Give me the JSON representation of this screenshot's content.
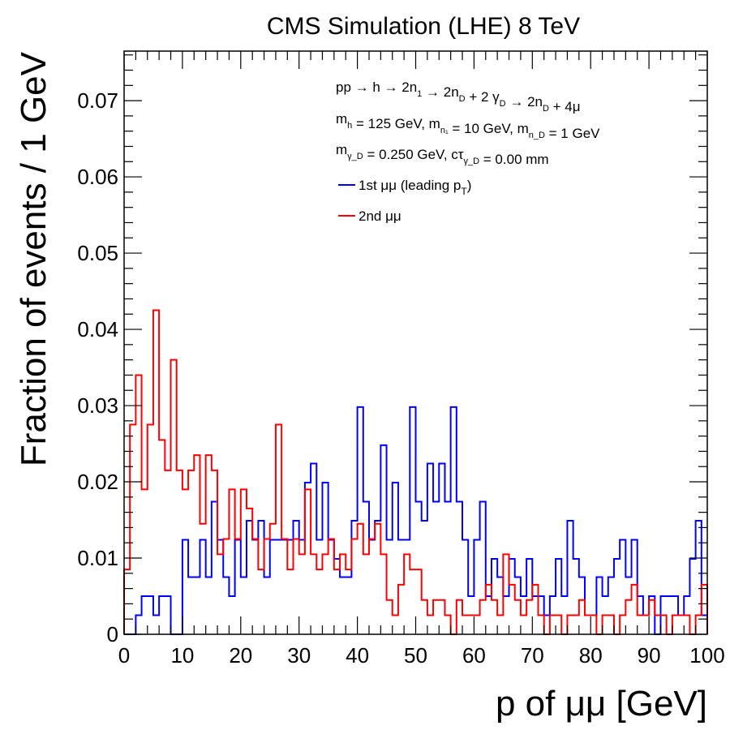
{
  "chart_data": {
    "type": "histogram",
    "title": "CMS Simulation (LHE) 8 TeV",
    "xlabel": "p of μμ [GeV]",
    "ylabel": "Fraction of events / 1 GeV",
    "xlim": [
      0,
      100
    ],
    "ylim": [
      0,
      0.0765
    ],
    "bin_width": 1,
    "x_ticks": [
      "0",
      "10",
      "20",
      "30",
      "40",
      "50",
      "60",
      "70",
      "80",
      "90",
      "100"
    ],
    "y_ticks": [
      "0",
      "0.01",
      "0.02",
      "0.03",
      "0.04",
      "0.05",
      "0.06",
      "0.07"
    ],
    "legend": {
      "placement": "top-right",
      "lines": [
        {
          "pre": "pp → h → 2n",
          "sub": "1",
          "post": " → 2n",
          "sub2": "D",
          "post2": " + 2 γ",
          "sub3": "D",
          "post3": " → 2n",
          "sub4": "D",
          "post4": " + 4μ"
        },
        {
          "pre": "m",
          "sub": "h",
          "post": " = 125 GeV, m",
          "sub2": "n₁",
          "post2": " = 10 GeV, m",
          "sub3": "n_D",
          "post3": " = 1 GeV"
        },
        {
          "pre": "m",
          "sub": "γ_D",
          "post": " = 0.250 GeV, cτ",
          "sub2": "γ_D",
          "post2": " = 0.00 mm"
        }
      ]
    },
    "series": [
      {
        "name": "1st μμ (leading p_T)",
        "name_main": "1st μμ (leading p",
        "name_sub": "T",
        "name_end": ")",
        "color": "#0000ff",
        "values": [
          0,
          0,
          0.0025,
          0.005,
          0.005,
          0.0025,
          0.005,
          0.005,
          0,
          0,
          0.0124,
          0.0075,
          0.0075,
          0.0124,
          0.0075,
          0.0174,
          0.0124,
          0.0075,
          0.005,
          0.0124,
          0.0075,
          0.0149,
          0.0124,
          0.0149,
          0.0075,
          0.0124,
          0.0124,
          0.0124,
          0.0124,
          0.0149,
          0.0124,
          0.0199,
          0.0224,
          0.0124,
          0.0199,
          0.0124,
          0.0099,
          0.0075,
          0.0075,
          0.0149,
          0.0298,
          0.0174,
          0.0124,
          0.0149,
          0.0248,
          0.0124,
          0.0199,
          0.0124,
          0.0124,
          0.0298,
          0.0174,
          0.0149,
          0.0224,
          0.0174,
          0.0224,
          0.0174,
          0.0298,
          0.0174,
          0.0124,
          0.005,
          0.0124,
          0.0174,
          0.005,
          0.0099,
          0.0075,
          0.005,
          0.0099,
          0.0075,
          0.005,
          0.0099,
          0.005,
          0.005,
          0.0025,
          0.005,
          0.0099,
          0.005,
          0.0149,
          0.0099,
          0.0075,
          0.0025,
          0.0025,
          0.0075,
          0.005,
          0.0075,
          0.0099,
          0.0124,
          0.0075,
          0.0124,
          0.005,
          0.0025,
          0.005,
          0,
          0.005,
          0.005,
          0.005,
          0.0025,
          0.005,
          0.0099,
          0.0149,
          0.0025
        ]
      },
      {
        "name": "2nd μμ",
        "name_main": "2nd μμ",
        "name_sub": "",
        "name_end": "",
        "color": "#ff0000",
        "values": [
          0.0085,
          0.0275,
          0.034,
          0.019,
          0.0275,
          0.0425,
          0.0255,
          0.0215,
          0.036,
          0.0215,
          0.019,
          0.0215,
          0.0235,
          0.0145,
          0.0235,
          0.0215,
          0.0105,
          0.0125,
          0.019,
          0.0125,
          0.019,
          0.0165,
          0.0125,
          0.0085,
          0.0125,
          0.0145,
          0.0275,
          0.0125,
          0.0085,
          0.0125,
          0.0105,
          0.019,
          0.0105,
          0.0085,
          0.0105,
          0.0125,
          0.0085,
          0.0105,
          0.0085,
          0.0125,
          0.0145,
          0.0105,
          0.0125,
          0.0145,
          0.0105,
          0.0045,
          0.0025,
          0.0065,
          0.0105,
          0.0085,
          0.0085,
          0.0045,
          0.0025,
          0.0045,
          0.0045,
          0.0025,
          0,
          0.0045,
          0.0025,
          0.0025,
          0.0025,
          0.0045,
          0.0065,
          0.0045,
          0.0025,
          0.0105,
          0.0065,
          0.0045,
          0.0025,
          0.0045,
          0.0065,
          0.0025,
          0,
          0.0025,
          0.0025,
          0,
          0.0025,
          0.0025,
          0.0045,
          0.0025,
          0.0025,
          0,
          0.0025,
          0.0025,
          0,
          0.0025,
          0.0045,
          0.0065,
          0.0025,
          0.0025,
          0.0045,
          0.0025,
          0.0025,
          0,
          0.0025,
          0.0025,
          0.0025,
          0,
          0.0025,
          0.0065
        ]
      }
    ]
  }
}
